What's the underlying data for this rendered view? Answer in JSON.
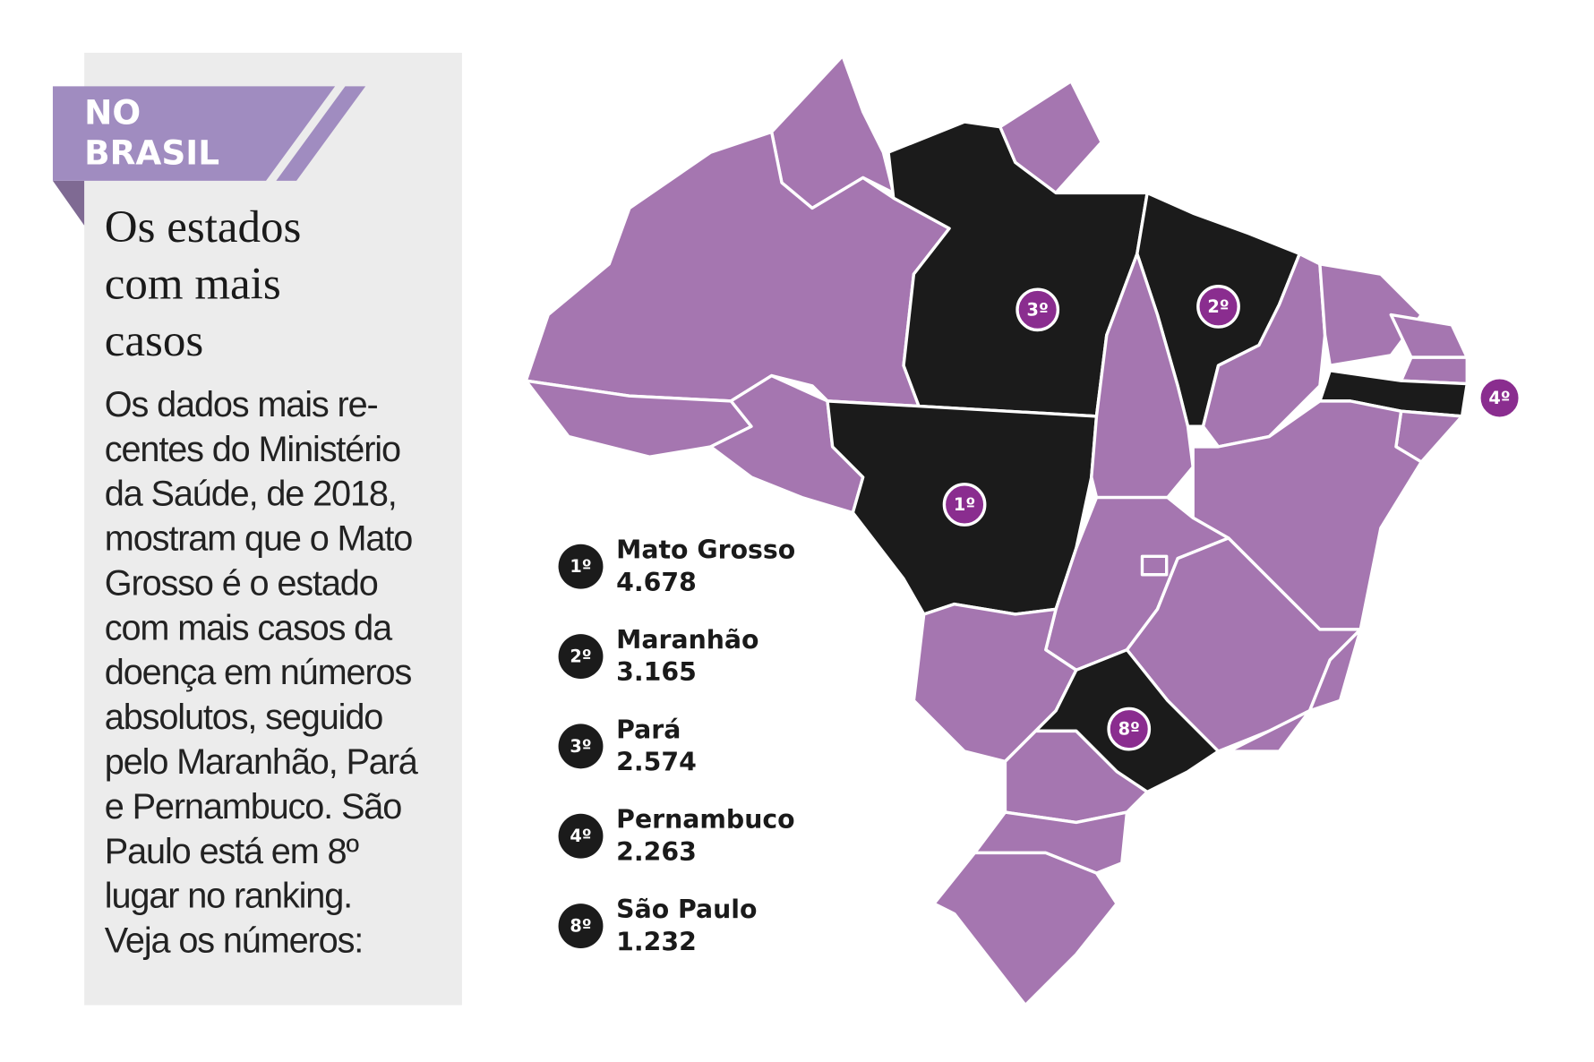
{
  "tag": [
    "NO",
    "BRASIL"
  ],
  "title": [
    "Os estados",
    "com mais",
    "casos"
  ],
  "body": [
    "Os dados mais re-",
    "centes do Ministério",
    "da Saúde, de 2018,",
    "mostram que o Mato",
    "Grosso é o estado",
    "com mais casos da",
    "doença em números",
    "absolutos, seguido",
    "pelo Maranhão, Pará",
    "e Pernambuco. São",
    "Paulo está em 8º",
    "lugar no ranking.",
    "Veja os números:"
  ],
  "ranking": [
    {
      "rank": "1º",
      "state": "Mato Grosso",
      "cases": "4.678"
    },
    {
      "rank": "2º",
      "state": "Maranhão",
      "cases": "3.165"
    },
    {
      "rank": "3º",
      "state": "Pará",
      "cases": "2.574"
    },
    {
      "rank": "4º",
      "state": "Pernambuco",
      "cases": "2.263"
    },
    {
      "rank": "8º",
      "state": "São Paulo",
      "cases": "1.232"
    }
  ]
}
